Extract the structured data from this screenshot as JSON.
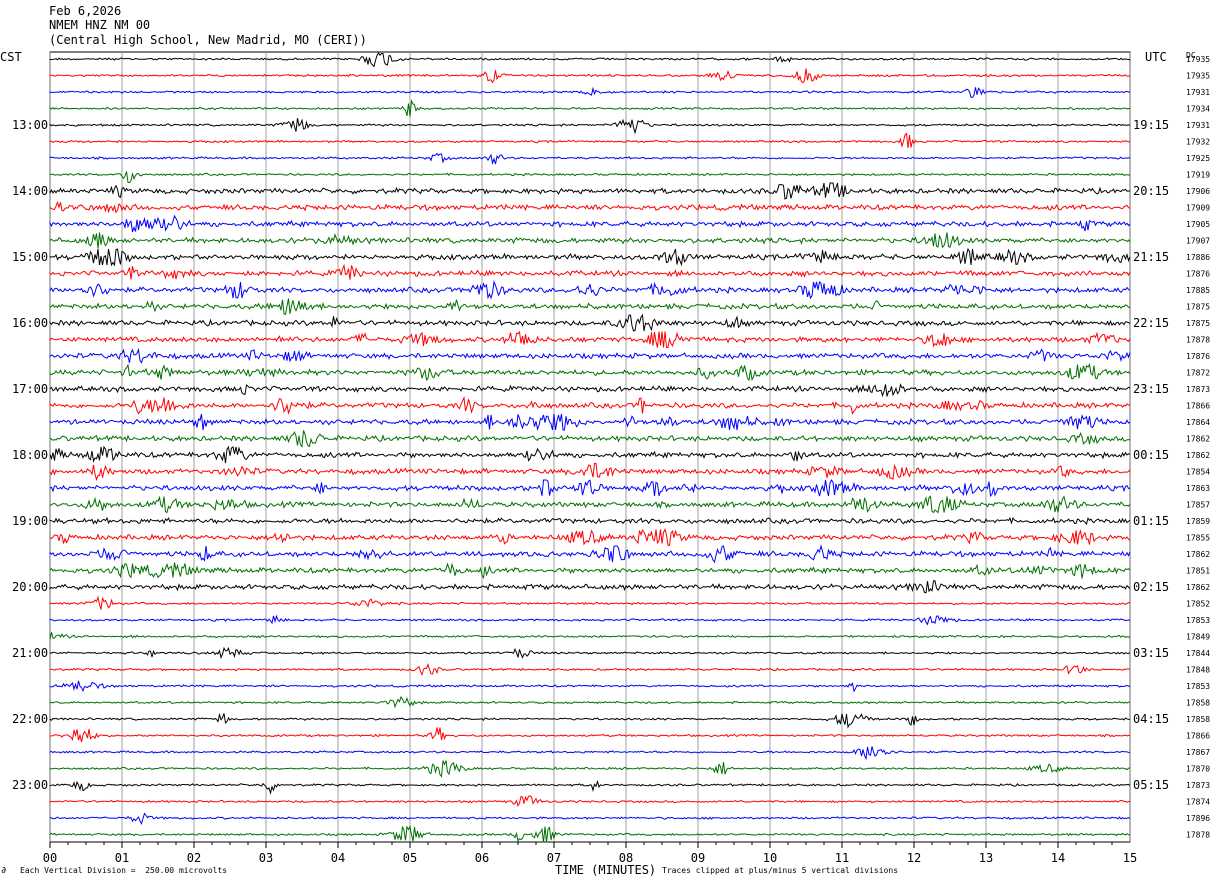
{
  "header": {
    "date": "Feb 6,2026",
    "station": "NMEM HNZ NM 00",
    "location": "(Central High School, New Madrid, MO (CERI))"
  },
  "labels": {
    "left_tz": "CST",
    "right_tz": "UTC",
    "dc": "DC",
    "xlabel": "TIME (MINUTES)",
    "division_note": "Each Vertical Division =  250.00 microvolts",
    "clip_note": "Traces clipped at plus/minus 5 vertical divisions",
    "logo": "∂"
  },
  "chart_data": {
    "type": "line",
    "x_ticks": [
      "00",
      "01",
      "02",
      "03",
      "04",
      "05",
      "06",
      "07",
      "08",
      "09",
      "10",
      "11",
      "12",
      "13",
      "14",
      "15"
    ],
    "xlim": [
      0,
      15
    ],
    "trace_colors": [
      "#000000",
      "#ff0000",
      "#0000ff",
      "#007000"
    ],
    "left_hour_labels": [
      "13:00",
      "14:00",
      "15:00",
      "16:00",
      "17:00",
      "18:00",
      "19:00",
      "20:00",
      "21:00",
      "22:00",
      "23:00"
    ],
    "right_hour_labels": [
      "19:15",
      "20:15",
      "21:15",
      "22:15",
      "23:15",
      "00:15",
      "01:15",
      "02:15",
      "03:15",
      "04:15",
      "05:15"
    ],
    "dc_offsets": [
      "17935",
      "17935",
      "17931",
      "17934",
      "17931",
      "17932",
      "17925",
      "17919",
      "17906",
      "17909",
      "17905",
      "17907",
      "17886",
      "17876",
      "17885",
      "17875",
      "17875",
      "17878",
      "17876",
      "17872",
      "17873",
      "17866",
      "17864",
      "17862",
      "17862",
      "17854",
      "17863",
      "17857",
      "17859",
      "17855",
      "17862",
      "17851",
      "17862",
      "17852",
      "17853",
      "17849",
      "17844",
      "17848",
      "17853",
      "17858",
      "17858",
      "17866",
      "17867",
      "17870",
      "17873",
      "17874",
      "17896",
      "17878"
    ]
  }
}
